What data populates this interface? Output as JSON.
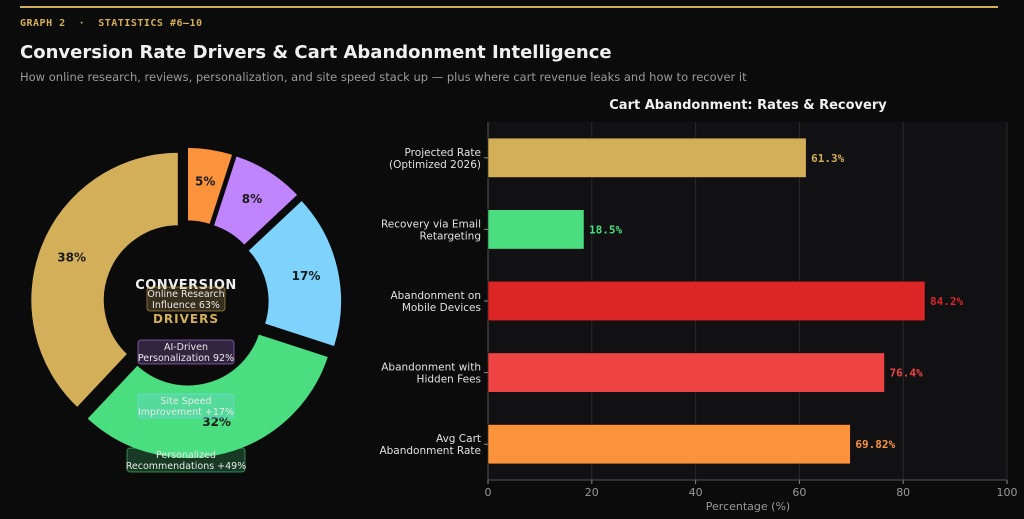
{
  "header": {
    "kicker": "GRAPH 2  ·  STATISTICS #6–10",
    "title": "Conversion Rate Drivers & Cart Abandonment Intelligence",
    "subtitle": "How online research, reviews, personalization, and site speed stack up — plus where cart revenue leaks and how to recover it"
  },
  "chart_data": [
    {
      "type": "pie",
      "subtype": "donut",
      "center_label": [
        "CONVERSION",
        "DRIVERS"
      ],
      "slices": [
        {
          "label": "5%",
          "value": 5,
          "color": "#fb923c"
        },
        {
          "label": "8%",
          "value": 8,
          "color": "#c084fc"
        },
        {
          "label": "17%",
          "value": 17,
          "color": "#7dd3fc"
        },
        {
          "label": "32%",
          "value": 32,
          "color": "#4ade80"
        },
        {
          "label": "38%",
          "value": 38,
          "color": "#d4af5a"
        }
      ],
      "annotations": [
        {
          "lines": [
            "Online Research",
            "Influence 63%"
          ],
          "color": "#d4af5a"
        },
        {
          "lines": [
            "AI-Driven",
            "Personalization 92%"
          ],
          "color": "#c084fc"
        },
        {
          "lines": [
            "Site Speed",
            "Improvement +17%"
          ],
          "color": "#7dd3fc"
        },
        {
          "lines": [
            "Personalized",
            "Recommendations +49%"
          ],
          "color": "#4ade80"
        }
      ]
    },
    {
      "type": "bar",
      "orientation": "horizontal",
      "title": "Cart Abandonment: Rates & Recovery",
      "xlabel": "Percentage (%)",
      "xlim": [
        0,
        100
      ],
      "xticks": [
        "0",
        "20",
        "40",
        "60",
        "80",
        "100"
      ],
      "grid": true,
      "categories": [
        [
          "Projected Rate",
          "(Optimized 2026)"
        ],
        [
          "Recovery via Email",
          "Retargeting"
        ],
        [
          "Abandonment on",
          "Mobile Devices"
        ],
        [
          "Abandonment with",
          "Hidden Fees"
        ],
        [
          "Avg Cart",
          "Abandonment Rate"
        ]
      ],
      "values": [
        61.3,
        18.5,
        84.2,
        76.4,
        69.82
      ],
      "value_labels": [
        "61.3%",
        "18.5%",
        "84.2%",
        "76.4%",
        "69.82%"
      ],
      "colors": [
        "#d4af5a",
        "#4ade80",
        "#dc2626",
        "#ef4444",
        "#fb923c"
      ]
    }
  ]
}
